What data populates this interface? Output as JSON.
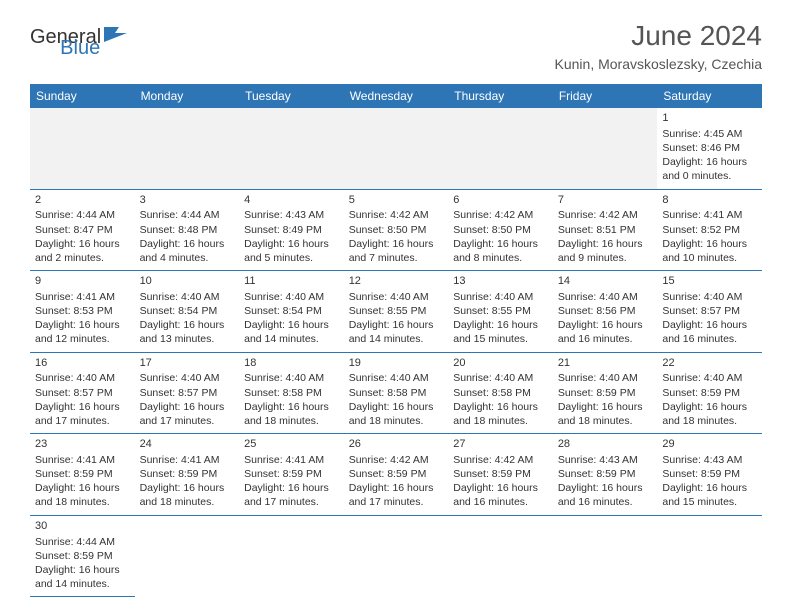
{
  "brand": {
    "general": "General",
    "blue": "Blue",
    "general_color": "#333333",
    "blue_color": "#2e75b6"
  },
  "title": "June 2024",
  "location": "Kunin, Moravskoslezsky, Czechia",
  "colors": {
    "header_bg": "#2e75b6",
    "header_text": "#ffffff",
    "border": "#2e75b6",
    "empty_bg": "#f2f2f2",
    "text": "#333333",
    "background": "#ffffff"
  },
  "typography": {
    "title_fontsize": 28,
    "location_fontsize": 14,
    "dayheader_fontsize": 12,
    "cell_fontsize": 10.5
  },
  "day_headers": [
    "Sunday",
    "Monday",
    "Tuesday",
    "Wednesday",
    "Thursday",
    "Friday",
    "Saturday"
  ],
  "weeks": [
    [
      null,
      null,
      null,
      null,
      null,
      null,
      {
        "n": "1",
        "sr": "Sunrise: 4:45 AM",
        "ss": "Sunset: 8:46 PM",
        "d1": "Daylight: 16 hours",
        "d2": "and 0 minutes."
      }
    ],
    [
      {
        "n": "2",
        "sr": "Sunrise: 4:44 AM",
        "ss": "Sunset: 8:47 PM",
        "d1": "Daylight: 16 hours",
        "d2": "and 2 minutes."
      },
      {
        "n": "3",
        "sr": "Sunrise: 4:44 AM",
        "ss": "Sunset: 8:48 PM",
        "d1": "Daylight: 16 hours",
        "d2": "and 4 minutes."
      },
      {
        "n": "4",
        "sr": "Sunrise: 4:43 AM",
        "ss": "Sunset: 8:49 PM",
        "d1": "Daylight: 16 hours",
        "d2": "and 5 minutes."
      },
      {
        "n": "5",
        "sr": "Sunrise: 4:42 AM",
        "ss": "Sunset: 8:50 PM",
        "d1": "Daylight: 16 hours",
        "d2": "and 7 minutes."
      },
      {
        "n": "6",
        "sr": "Sunrise: 4:42 AM",
        "ss": "Sunset: 8:50 PM",
        "d1": "Daylight: 16 hours",
        "d2": "and 8 minutes."
      },
      {
        "n": "7",
        "sr": "Sunrise: 4:42 AM",
        "ss": "Sunset: 8:51 PM",
        "d1": "Daylight: 16 hours",
        "d2": "and 9 minutes."
      },
      {
        "n": "8",
        "sr": "Sunrise: 4:41 AM",
        "ss": "Sunset: 8:52 PM",
        "d1": "Daylight: 16 hours",
        "d2": "and 10 minutes."
      }
    ],
    [
      {
        "n": "9",
        "sr": "Sunrise: 4:41 AM",
        "ss": "Sunset: 8:53 PM",
        "d1": "Daylight: 16 hours",
        "d2": "and 12 minutes."
      },
      {
        "n": "10",
        "sr": "Sunrise: 4:40 AM",
        "ss": "Sunset: 8:54 PM",
        "d1": "Daylight: 16 hours",
        "d2": "and 13 minutes."
      },
      {
        "n": "11",
        "sr": "Sunrise: 4:40 AM",
        "ss": "Sunset: 8:54 PM",
        "d1": "Daylight: 16 hours",
        "d2": "and 14 minutes."
      },
      {
        "n": "12",
        "sr": "Sunrise: 4:40 AM",
        "ss": "Sunset: 8:55 PM",
        "d1": "Daylight: 16 hours",
        "d2": "and 14 minutes."
      },
      {
        "n": "13",
        "sr": "Sunrise: 4:40 AM",
        "ss": "Sunset: 8:55 PM",
        "d1": "Daylight: 16 hours",
        "d2": "and 15 minutes."
      },
      {
        "n": "14",
        "sr": "Sunrise: 4:40 AM",
        "ss": "Sunset: 8:56 PM",
        "d1": "Daylight: 16 hours",
        "d2": "and 16 minutes."
      },
      {
        "n": "15",
        "sr": "Sunrise: 4:40 AM",
        "ss": "Sunset: 8:57 PM",
        "d1": "Daylight: 16 hours",
        "d2": "and 16 minutes."
      }
    ],
    [
      {
        "n": "16",
        "sr": "Sunrise: 4:40 AM",
        "ss": "Sunset: 8:57 PM",
        "d1": "Daylight: 16 hours",
        "d2": "and 17 minutes."
      },
      {
        "n": "17",
        "sr": "Sunrise: 4:40 AM",
        "ss": "Sunset: 8:57 PM",
        "d1": "Daylight: 16 hours",
        "d2": "and 17 minutes."
      },
      {
        "n": "18",
        "sr": "Sunrise: 4:40 AM",
        "ss": "Sunset: 8:58 PM",
        "d1": "Daylight: 16 hours",
        "d2": "and 18 minutes."
      },
      {
        "n": "19",
        "sr": "Sunrise: 4:40 AM",
        "ss": "Sunset: 8:58 PM",
        "d1": "Daylight: 16 hours",
        "d2": "and 18 minutes."
      },
      {
        "n": "20",
        "sr": "Sunrise: 4:40 AM",
        "ss": "Sunset: 8:58 PM",
        "d1": "Daylight: 16 hours",
        "d2": "and 18 minutes."
      },
      {
        "n": "21",
        "sr": "Sunrise: 4:40 AM",
        "ss": "Sunset: 8:59 PM",
        "d1": "Daylight: 16 hours",
        "d2": "and 18 minutes."
      },
      {
        "n": "22",
        "sr": "Sunrise: 4:40 AM",
        "ss": "Sunset: 8:59 PM",
        "d1": "Daylight: 16 hours",
        "d2": "and 18 minutes."
      }
    ],
    [
      {
        "n": "23",
        "sr": "Sunrise: 4:41 AM",
        "ss": "Sunset: 8:59 PM",
        "d1": "Daylight: 16 hours",
        "d2": "and 18 minutes."
      },
      {
        "n": "24",
        "sr": "Sunrise: 4:41 AM",
        "ss": "Sunset: 8:59 PM",
        "d1": "Daylight: 16 hours",
        "d2": "and 18 minutes."
      },
      {
        "n": "25",
        "sr": "Sunrise: 4:41 AM",
        "ss": "Sunset: 8:59 PM",
        "d1": "Daylight: 16 hours",
        "d2": "and 17 minutes."
      },
      {
        "n": "26",
        "sr": "Sunrise: 4:42 AM",
        "ss": "Sunset: 8:59 PM",
        "d1": "Daylight: 16 hours",
        "d2": "and 17 minutes."
      },
      {
        "n": "27",
        "sr": "Sunrise: 4:42 AM",
        "ss": "Sunset: 8:59 PM",
        "d1": "Daylight: 16 hours",
        "d2": "and 16 minutes."
      },
      {
        "n": "28",
        "sr": "Sunrise: 4:43 AM",
        "ss": "Sunset: 8:59 PM",
        "d1": "Daylight: 16 hours",
        "d2": "and 16 minutes."
      },
      {
        "n": "29",
        "sr": "Sunrise: 4:43 AM",
        "ss": "Sunset: 8:59 PM",
        "d1": "Daylight: 16 hours",
        "d2": "and 15 minutes."
      }
    ],
    [
      {
        "n": "30",
        "sr": "Sunrise: 4:44 AM",
        "ss": "Sunset: 8:59 PM",
        "d1": "Daylight: 16 hours",
        "d2": "and 14 minutes."
      },
      null,
      null,
      null,
      null,
      null,
      null
    ]
  ]
}
